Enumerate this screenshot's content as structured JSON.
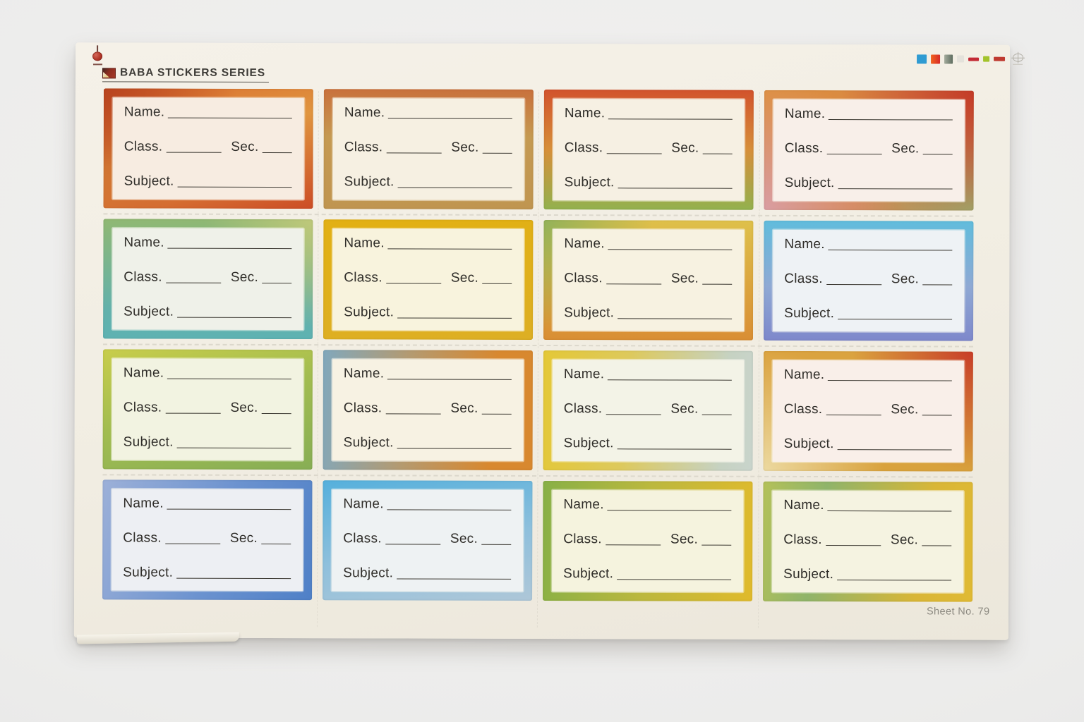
{
  "scene": {
    "background_color": "#ececeb",
    "sheet_color": "#f1ede2"
  },
  "header": {
    "brand_title": "BABA STICKERS SERIES",
    "top_left_icon": "registration-plumb-mark-icon",
    "brand_icon": "brand-logo-icon",
    "top_right_icon": "registration-target-icon"
  },
  "footer": {
    "sheet_number": "Sheet No. 79"
  },
  "labels": {
    "name": "Name.",
    "class": "Class.",
    "sec": "Sec.",
    "subject": "Subject."
  },
  "grid": {
    "rows": 4,
    "cols": 4
  },
  "calibration_swatches": [
    {
      "name": "cyan-square",
      "css": "#2f9bd2",
      "w": 14,
      "h": 13
    },
    {
      "name": "orange-red-square",
      "css": "linear-gradient(90deg, #f1641f, #d62a28)",
      "w": 13,
      "h": 13
    },
    {
      "name": "gray-green-square",
      "css": "linear-gradient(90deg, #a3ab9c, #5f6e60)",
      "w": 12,
      "h": 13
    },
    {
      "name": "faint-gray-square",
      "css": "#e4e2db",
      "w": 10,
      "h": 10
    },
    {
      "name": "red-bar",
      "css": "#c32a35",
      "w": 15,
      "h": 5
    },
    {
      "name": "green-chip",
      "css": "#a3c32b",
      "w": 9,
      "h": 8
    },
    {
      "name": "red-bar-2",
      "css": "#bf3a30",
      "w": 16,
      "h": 6
    }
  ],
  "stickers": [
    {
      "pos": "r1c1",
      "border_css": "radial-gradient(circle at 0% 0%, #b8441f, rgba(184,68,31,0) 55%), linear-gradient(165deg, #d96a2e 0%, #e0953f 45%, #cc4d26 100%)",
      "interior": "#f7ece1"
    },
    {
      "pos": "r1c2",
      "border_css": "linear-gradient(180deg, #c9713c 0%, #c59a52 40%, #c09550 100%)",
      "interior": "#f6f0e2"
    },
    {
      "pos": "r1c3",
      "border_css": "linear-gradient(180deg, #d2532c 0%, #d68f3a 50%, #93b14e 100%)",
      "interior": "#f6f0e3"
    },
    {
      "pos": "r1c4",
      "border_css": "radial-gradient(circle at 100% 0%, #c43b28, rgba(196,59,40,0) 55%), radial-gradient(circle at 0% 100%, #d99da2, rgba(217,157,162,0) 55%), radial-gradient(circle at 100% 100%, #9dab6c, rgba(157,171,108,0) 50%), linear-gradient(135deg, #de8f3c 0%, #cf7e52 100%)",
      "interior": "#f8efe9"
    },
    {
      "pos": "r2c1",
      "border_css": "radial-gradient(circle at 100% 0%, #bec87a, rgba(190,200,122,0) 45%), linear-gradient(180deg, #90b873 0%, #63b1ab 75%, #5eb2b2 100%)",
      "interior": "#eff1e9"
    },
    {
      "pos": "r2c2",
      "border_css": "linear-gradient(175deg, #e2b013 0%, #ddaf24 100%)",
      "interior": "#f8f3dd"
    },
    {
      "pos": "r2c3",
      "border_css": "radial-gradient(circle at 0% 0%, #93b259, rgba(147,178,89,0) 45%), linear-gradient(180deg, #dec04a 0%, #d98e34 100%)",
      "interior": "#f7f2e1"
    },
    {
      "pos": "r2c4",
      "border_css": "linear-gradient(180deg, #61bcdc 0%, #8fa9d4 55%, #7e88cb 100%)",
      "interior": "#eef2f5"
    },
    {
      "pos": "r3c1",
      "border_css": "linear-gradient(165deg, #c8cd4b 0%, #a3bd50 45%, #87ae55 100%)",
      "interior": "#f2f3e1"
    },
    {
      "pos": "r3c2",
      "border_css": "linear-gradient(95deg, #81a8bc 0%, #b49a70 40%, #d8882f 80%)",
      "interior": "#f7f2e3"
    },
    {
      "pos": "r3c3",
      "border_css": "linear-gradient(95deg, #e4c837 0%, #ddc95d 40%, #c6d2c2 85%, #c9d4cc 100%)",
      "interior": "#f3f3e7"
    },
    {
      "pos": "r3c4",
      "border_css": "radial-gradient(circle at 100% 0%, #c83e28, rgba(200,62,40,0) 50%), radial-gradient(circle at 0% 100%, #ecd9a0, rgba(236,217,160,0) 50%), linear-gradient(135deg, #dba340 0%, #d8a23c 100%)",
      "interior": "#f9efe9"
    },
    {
      "pos": "r4c1",
      "border_css": "linear-gradient(110deg, #9cb0d8 0%, #6b92cf 55%, #4f80c7 100%)",
      "interior": "#edeff3"
    },
    {
      "pos": "r4c2",
      "border_css": "linear-gradient(170deg, #55b0dc 0%, #8fc0dc 55%, #aec7d8 100%)",
      "interior": "#eef2f3"
    },
    {
      "pos": "r4c3",
      "border_css": "linear-gradient(95deg, #88b046 0%, #bcb83e 50%, #e0ba2c 100%)",
      "interior": "#f5f3de"
    },
    {
      "pos": "r4c4",
      "border_css": "linear-gradient(100deg, #b4c159 0%, #8fb46a 28%, #d9b637 75%, #e0ba34 100%)",
      "interior": "#f5f3e1"
    }
  ]
}
